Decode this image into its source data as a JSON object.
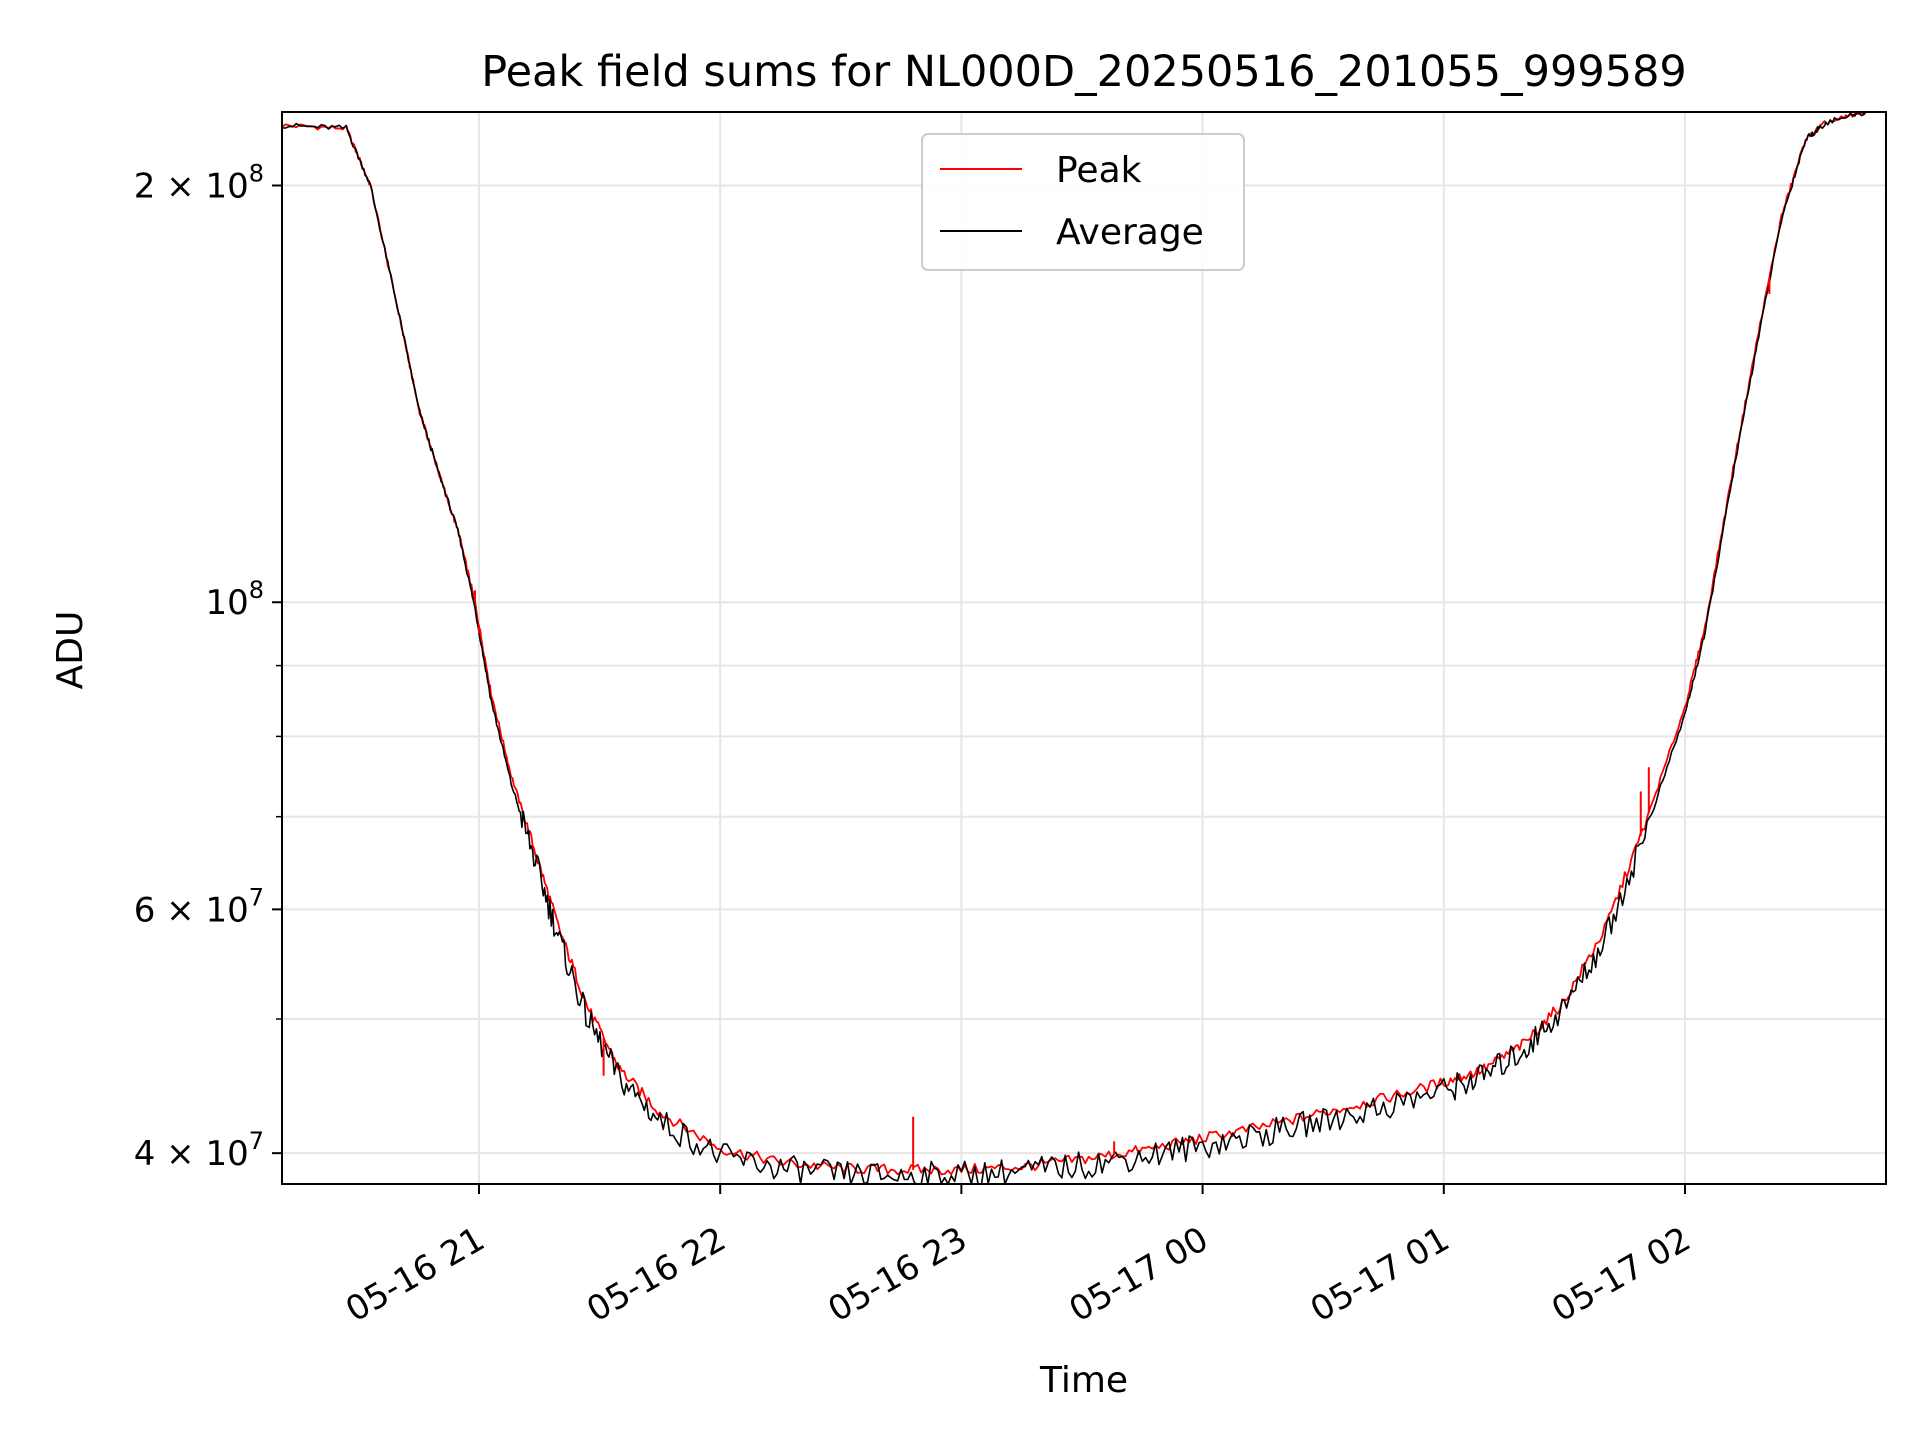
{
  "chart_data": {
    "type": "line",
    "title": "Peak field sums for NL000D_20250516_201055_999589",
    "xlabel": "Time",
    "ylabel": "ADU",
    "yscale": "log",
    "xlim": [
      "2025-05-16 20:11",
      "2025-05-17 02:50"
    ],
    "ylim": [
      38000000,
      226000000
    ],
    "x_ticks": [
      {
        "value": "2025-05-16 21:00",
        "label": "05-16 21"
      },
      {
        "value": "2025-05-16 22:00",
        "label": "05-16 22"
      },
      {
        "value": "2025-05-16 23:00",
        "label": "05-16 23"
      },
      {
        "value": "2025-05-17 00:00",
        "label": "05-17 00"
      },
      {
        "value": "2025-05-17 01:00",
        "label": "05-17 01"
      },
      {
        "value": "2025-05-17 02:00",
        "label": "05-17 02"
      }
    ],
    "y_major_ticks": [
      {
        "value": 40000000,
        "base": "4 × 10",
        "exp": "7"
      },
      {
        "value": 60000000,
        "base": "6 × 10",
        "exp": "7"
      },
      {
        "value": 100000000,
        "base": "10",
        "exp": "8"
      },
      {
        "value": 200000000,
        "base": "2 × 10",
        "exp": "8"
      }
    ],
    "y_minor_ticks": [
      50000000,
      70000000,
      80000000,
      90000000
    ],
    "grid": true,
    "legend_position": "top-center",
    "series": [
      {
        "name": "Peak",
        "color": "#ff0000",
        "points": [
          [
            "2025-05-16 20:11",
            221000000
          ],
          [
            "2025-05-16 20:27",
            220000000
          ],
          [
            "2025-05-16 20:33",
            200000000
          ],
          [
            "2025-05-16 20:40",
            162000000
          ],
          [
            "2025-05-16 20:45",
            138000000
          ],
          [
            "2025-05-16 20:50",
            124000000
          ],
          [
            "2025-05-16 20:55",
            112000000
          ],
          [
            "2025-05-16 20:59",
            100000000
          ],
          [
            "2025-05-16 21:03",
            86000000
          ],
          [
            "2025-05-16 21:08",
            75000000
          ],
          [
            "2025-05-16 21:14",
            66000000
          ],
          [
            "2025-05-16 21:20",
            58000000
          ],
          [
            "2025-05-16 21:27",
            51000000
          ],
          [
            "2025-05-16 21:35",
            46000000
          ],
          [
            "2025-05-16 21:45",
            42800000
          ],
          [
            "2025-05-16 22:00",
            40300000
          ],
          [
            "2025-05-16 22:15",
            39400000
          ],
          [
            "2025-05-16 22:30",
            39000000
          ],
          [
            "2025-05-16 22:45",
            38900000
          ],
          [
            "2025-05-16 23:00",
            38900000
          ],
          [
            "2025-05-16 23:15",
            39100000
          ],
          [
            "2025-05-16 23:30",
            39600000
          ],
          [
            "2025-05-16 23:45",
            40200000
          ],
          [
            "2025-05-17 00:00",
            41000000
          ],
          [
            "2025-05-17 00:15",
            41800000
          ],
          [
            "2025-05-17 00:30",
            42800000
          ],
          [
            "2025-05-17 00:45",
            43800000
          ],
          [
            "2025-05-17 01:00",
            45000000
          ],
          [
            "2025-05-17 01:10",
            46000000
          ],
          [
            "2025-05-17 01:20",
            48000000
          ],
          [
            "2025-05-17 01:30",
            51500000
          ],
          [
            "2025-05-17 01:40",
            58000000
          ],
          [
            "2025-05-17 01:50",
            69000000
          ],
          [
            "2025-05-17 02:00",
            84000000
          ],
          [
            "2025-05-17 02:05",
            96000000
          ],
          [
            "2025-05-17 02:12",
            125000000
          ],
          [
            "2025-05-17 02:18",
            155000000
          ],
          [
            "2025-05-17 02:24",
            190000000
          ],
          [
            "2025-05-17 02:30",
            216000000
          ],
          [
            "2025-05-17 02:35",
            222000000
          ],
          [
            "2025-05-17 02:45",
            226000000
          ]
        ]
      },
      {
        "name": "Average",
        "color": "#000000",
        "points": [
          [
            "2025-05-16 20:11",
            221000000
          ],
          [
            "2025-05-16 20:27",
            220000000
          ],
          [
            "2025-05-16 20:33",
            200000000
          ],
          [
            "2025-05-16 20:40",
            162000000
          ],
          [
            "2025-05-16 20:45",
            138000000
          ],
          [
            "2025-05-16 20:50",
            124000000
          ],
          [
            "2025-05-16 20:55",
            112000000
          ],
          [
            "2025-05-16 20:59",
            99000000
          ],
          [
            "2025-05-16 21:03",
            85000000
          ],
          [
            "2025-05-16 21:08",
            74000000
          ],
          [
            "2025-05-16 21:14",
            65000000
          ],
          [
            "2025-05-16 21:20",
            57000000
          ],
          [
            "2025-05-16 21:27",
            50000000
          ],
          [
            "2025-05-16 21:35",
            45300000
          ],
          [
            "2025-05-16 21:45",
            42200000
          ],
          [
            "2025-05-16 22:00",
            39800000
          ],
          [
            "2025-05-16 22:15",
            39000000
          ],
          [
            "2025-05-16 22:30",
            38600000
          ],
          [
            "2025-05-16 22:45",
            38500000
          ],
          [
            "2025-05-16 23:00",
            38600000
          ],
          [
            "2025-05-16 23:15",
            38800000
          ],
          [
            "2025-05-16 23:30",
            39200000
          ],
          [
            "2025-05-16 23:45",
            39800000
          ],
          [
            "2025-05-17 00:00",
            40500000
          ],
          [
            "2025-05-17 00:15",
            41300000
          ],
          [
            "2025-05-17 00:30",
            42200000
          ],
          [
            "2025-05-17 00:45",
            43200000
          ],
          [
            "2025-05-17 01:00",
            44400000
          ],
          [
            "2025-05-17 01:10",
            45500000
          ],
          [
            "2025-05-17 01:20",
            47500000
          ],
          [
            "2025-05-17 01:30",
            51000000
          ],
          [
            "2025-05-17 01:40",
            57000000
          ],
          [
            "2025-05-17 01:50",
            68000000
          ],
          [
            "2025-05-17 02:00",
            83000000
          ],
          [
            "2025-05-17 02:05",
            95000000
          ],
          [
            "2025-05-17 02:12",
            124000000
          ],
          [
            "2025-05-17 02:18",
            154000000
          ],
          [
            "2025-05-17 02:24",
            189000000
          ],
          [
            "2025-05-17 02:30",
            216000000
          ],
          [
            "2025-05-17 02:35",
            222000000
          ],
          [
            "2025-05-17 02:45",
            226000000
          ]
        ]
      }
    ],
    "spikes": [
      {
        "series": "Peak",
        "x": "2025-05-16 20:59",
        "y": 102000000
      },
      {
        "series": "Peak",
        "x": "2025-05-16 21:00",
        "y": 95000000
      },
      {
        "series": "Peak",
        "x": "2025-05-16 21:31",
        "y": 45500000
      },
      {
        "series": "Peak",
        "x": "2025-05-16 22:48",
        "y": 42500000
      },
      {
        "series": "Peak",
        "x": "2025-05-16 23:38",
        "y": 40800000
      },
      {
        "series": "Peak",
        "x": "2025-05-17 01:49",
        "y": 73000000
      },
      {
        "series": "Peak",
        "x": "2025-05-17 01:51",
        "y": 76000000
      },
      {
        "series": "Peak",
        "x": "2025-05-17 02:21",
        "y": 167000000
      }
    ]
  }
}
